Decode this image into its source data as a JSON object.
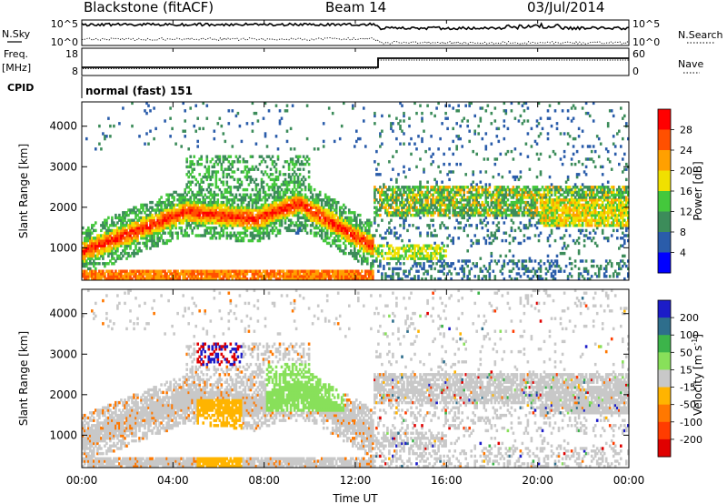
{
  "header": {
    "station": "Blackstone (fitACF)",
    "beam": "Beam 14",
    "date": "03/Jul/2014"
  },
  "nsky_panel": {
    "left_label": "N.Sky",
    "right_label": "N.Search",
    "left_ticks": [
      "10^5",
      "10^0"
    ],
    "right_ticks": [
      "10^5",
      "10^0"
    ]
  },
  "freq_panel": {
    "left_label_line1": "Freq.",
    "left_label_line2": "[MHz]",
    "right_label": "Nave",
    "left_ticks": [
      "18",
      "8"
    ],
    "right_ticks": [
      "60",
      "0"
    ]
  },
  "cpid_panel": {
    "label": "CPID",
    "text": "normal (fast) 151"
  },
  "chart_data": [
    {
      "type": "heatmap",
      "panel": "power",
      "ylabel": "Slant Range [km]",
      "yticks": [
        "1000",
        "2000",
        "3000",
        "4000"
      ],
      "ylim": [
        200,
        4600
      ],
      "xlim": [
        0,
        24
      ],
      "colorbar_label": "Power [dB]",
      "colorbar_ticks": [
        "4",
        "8",
        "12",
        "16",
        "20",
        "24",
        "28"
      ],
      "colors": [
        "#0000ff",
        "#2a5caa",
        "#3c8c5a",
        "#44c83c",
        "#f0e000",
        "#ffa000",
        "#ff5000",
        "#ff0000"
      ]
    },
    {
      "type": "heatmap",
      "panel": "velocity",
      "ylabel": "Slant Range [km]",
      "yticks": [
        "1000",
        "2000",
        "3000",
        "4000"
      ],
      "ylim": [
        200,
        4600
      ],
      "xlim": [
        0,
        24
      ],
      "colorbar_label": "Velocity [m s^-1]",
      "colorbar_ticks": [
        "200",
        "100",
        "50",
        "15",
        "-15",
        "-50",
        "-100",
        "-200"
      ],
      "colors": [
        "#1c1cc8",
        "#2e6e8c",
        "#3cb44a",
        "#88e05a",
        "#c8c8c8",
        "#ffb400",
        "#ff7800",
        "#ff3c00",
        "#e00000"
      ]
    }
  ],
  "xaxis": {
    "ticks": [
      "00:00",
      "04:00",
      "08:00",
      "12:00",
      "16:00",
      "20:00",
      "00:00"
    ],
    "label": "Time UT"
  }
}
